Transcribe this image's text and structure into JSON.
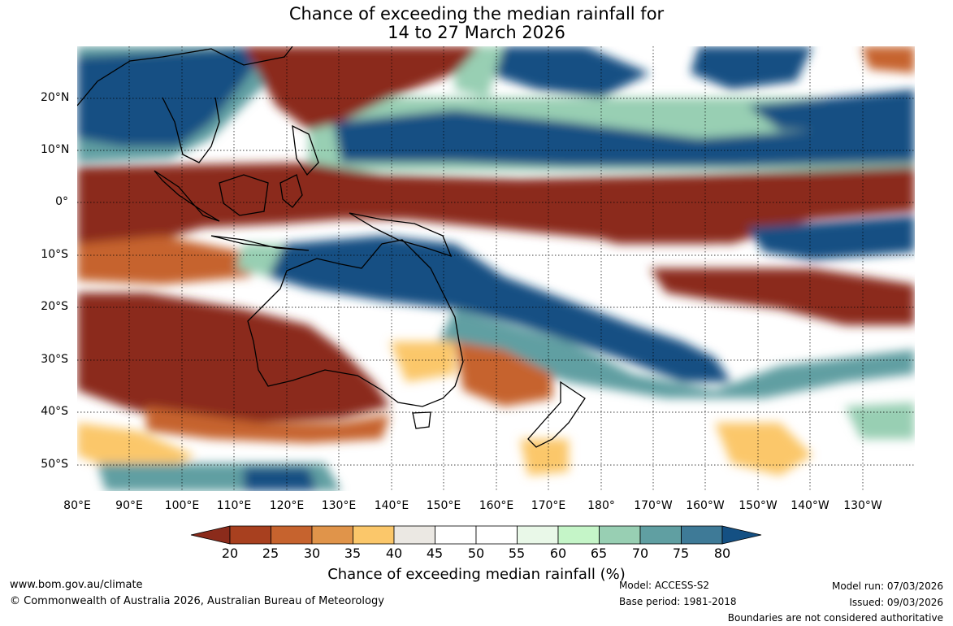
{
  "title_line1": "Chance of exceeding the median rainfall for",
  "title_line2": "14 to 27 March 2026",
  "map": {
    "lat_labels": [
      "20°N",
      "10°N",
      "0°",
      "10°S",
      "20°S",
      "30°S",
      "40°S",
      "50°S"
    ],
    "lon_labels": [
      "80°E",
      "90°E",
      "100°E",
      "110°E",
      "120°E",
      "130°E",
      "140°E",
      "150°E",
      "160°E",
      "170°E",
      "180°",
      "170°W",
      "160°W",
      "150°W",
      "140°W",
      "130°W"
    ],
    "lon_range": [
      80,
      240
    ],
    "lat_range": [
      -55,
      30
    ]
  },
  "colorbar": {
    "ticks": [
      "20",
      "25",
      "30",
      "35",
      "40",
      "45",
      "50",
      "55",
      "60",
      "65",
      "70",
      "75",
      "80"
    ],
    "colors": [
      "#8b2b1b",
      "#a8401f",
      "#c6632e",
      "#e0944a",
      "#fbc76a",
      "#ebe8e3",
      "#ffffff",
      "#ffffff",
      "#e9f8e8",
      "#c5f5c8",
      "#98cfb3",
      "#609fa2",
      "#3e7a97",
      "#145083"
    ],
    "label": "Chance of exceeding median rainfall (%)"
  },
  "footer": {
    "url": "www.bom.gov.au/climate",
    "copyright": "© Commonwealth of Australia 2026, Australian Bureau of Meteorology",
    "model": "Model: ACCESS-S2",
    "base_period": "Base period: 1981-2018",
    "model_run": "Model run: 07/03/2026",
    "issued": "Issued: 09/03/2026",
    "disclaimer": "Boundaries are not considered authoritative"
  }
}
